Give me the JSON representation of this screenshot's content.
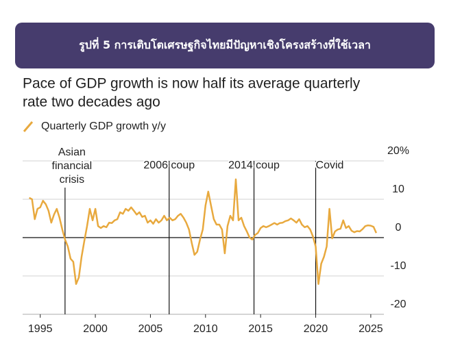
{
  "header": {
    "title": "รูปที่ 5 การเติบโตเศรษฐกิจไทยมีปัญหาเชิงโครงสร้างที่ใช้เวลา"
  },
  "chart_data": {
    "type": "line",
    "title": [
      "Pace of GDP growth is now half its average quarterly",
      "rate two decades ago"
    ],
    "x": [
      1994,
      1994.25,
      1994.5,
      1994.75,
      1995,
      1995.25,
      1995.5,
      1995.75,
      1996,
      1996.25,
      1996.5,
      1996.75,
      1997,
      1997.25,
      1997.5,
      1997.75,
      1998,
      1998.25,
      1998.5,
      1998.75,
      1999,
      1999.25,
      1999.5,
      1999.75,
      2000,
      2000.25,
      2000.5,
      2000.75,
      2001,
      2001.25,
      2001.5,
      2001.75,
      2002,
      2002.25,
      2002.5,
      2002.75,
      2003,
      2003.25,
      2003.5,
      2003.75,
      2004,
      2004.25,
      2004.5,
      2004.75,
      2005,
      2005.25,
      2005.5,
      2005.75,
      2006,
      2006.25,
      2006.5,
      2006.75,
      2007,
      2007.25,
      2007.5,
      2007.75,
      2008,
      2008.25,
      2008.5,
      2008.75,
      2009,
      2009.25,
      2009.5,
      2009.75,
      2010,
      2010.25,
      2010.5,
      2010.75,
      2011,
      2011.25,
      2011.5,
      2011.75,
      2012,
      2012.25,
      2012.5,
      2012.75,
      2013,
      2013.25,
      2013.5,
      2013.75,
      2014,
      2014.25,
      2014.5,
      2014.75,
      2015,
      2015.25,
      2015.5,
      2015.75,
      2016,
      2016.25,
      2016.5,
      2016.75,
      2017,
      2017.25,
      2017.5,
      2017.75,
      2018,
      2018.25,
      2018.5,
      2018.75,
      2019,
      2019.25,
      2019.5,
      2019.75,
      2020,
      2020.25,
      2020.5,
      2020.75,
      2021,
      2021.25,
      2021.5,
      2021.75,
      2022,
      2022.25,
      2022.5,
      2022.75,
      2023,
      2023.25,
      2023.5,
      2023.75,
      2024,
      2024.25,
      2024.5,
      2024.75,
      2025,
      2025.25,
      2025.5
    ],
    "series": [
      {
        "name": "Quarterly GDP growth y/y",
        "color": "#e8a93e",
        "values": [
          10.4,
          10,
          4.8,
          7.5,
          7.9,
          9.6,
          8.7,
          7,
          3.9,
          6,
          7.5,
          5.2,
          2.1,
          -0.5,
          -2.3,
          -5.5,
          -6.3,
          -12.1,
          -10.4,
          -5,
          -0.9,
          3,
          7.5,
          4.5,
          7.5,
          3,
          2.5,
          3,
          2.7,
          3.9,
          3.8,
          4.5,
          4.8,
          6.6,
          6.2,
          7.5,
          7,
          7.9,
          7,
          6,
          6.6,
          5.4,
          5.7,
          3.9,
          4.5,
          3.6,
          4.8,
          3.9,
          4.5,
          5.7,
          4.5,
          5.2,
          4.5,
          4.8,
          5.7,
          6.2,
          5.2,
          3.9,
          2.1,
          -1.4,
          -4.5,
          -3.7,
          -0.5,
          2.1,
          8.4,
          12,
          8.4,
          4.8,
          3.4,
          3.4,
          2.1,
          -4.1,
          3,
          5.7,
          4.5,
          15.2,
          4.5,
          5.2,
          3,
          1.6,
          0,
          -0.5,
          0.7,
          1.2,
          2.5,
          3,
          2.7,
          3,
          3.4,
          3.8,
          3.4,
          3.8,
          3.9,
          4.3,
          4.5,
          5,
          4.5,
          3.9,
          4.8,
          3.4,
          2.7,
          3,
          2.1,
          0.3,
          -2.3,
          -12.1,
          -6.8,
          -5,
          -2.3,
          7.5,
          -0.2,
          1.6,
          2.1,
          2.3,
          4.5,
          2.5,
          3,
          1.8,
          1.4,
          1.7,
          1.6,
          2.2,
          3,
          3.2,
          3.1,
          2.8,
          1.2
        ]
      }
    ],
    "xlim": [
      1993.4,
      2026.5
    ],
    "xticks": [
      1995,
      2000,
      2005,
      2010,
      2015,
      2020,
      2025
    ],
    "ylim": [
      -20,
      20
    ],
    "yticks": [
      {
        "value": 20,
        "label": "20%"
      },
      10,
      0,
      -10,
      -20
    ],
    "grid": true,
    "events": [
      {
        "x": 1997.25,
        "label": [
          "Asian",
          "financial",
          "crisis"
        ]
      },
      {
        "x": 2006.7,
        "label": [
          "2006 coup"
        ]
      },
      {
        "x": 2014.4,
        "label": [
          "2014 coup"
        ]
      },
      {
        "x": 2020.0,
        "label": [
          "Covid"
        ]
      }
    ]
  }
}
